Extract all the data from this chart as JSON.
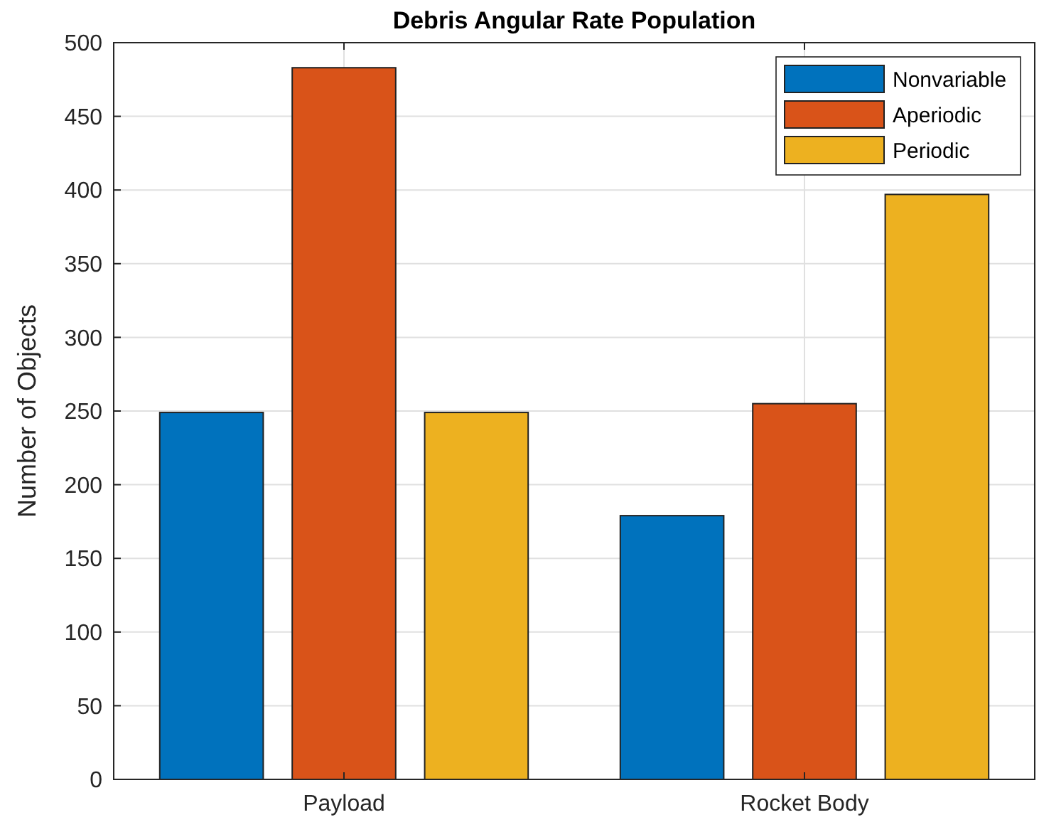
{
  "chart_data": {
    "type": "bar",
    "title": "Debris Angular Rate Population",
    "ylabel": "Number of Objects",
    "categories": [
      "Payload",
      "Rocket Body"
    ],
    "series": [
      {
        "name": "Nonvariable",
        "color": "#0072bd",
        "values": [
          249,
          179
        ]
      },
      {
        "name": "Aperiodic",
        "color": "#d95319",
        "values": [
          483,
          255
        ]
      },
      {
        "name": "Periodic",
        "color": "#edb120",
        "values": [
          249,
          397
        ]
      }
    ],
    "ylim": [
      0,
      500
    ],
    "yticks": [
      0,
      50,
      100,
      150,
      200,
      250,
      300,
      350,
      400,
      450,
      500
    ],
    "grid": true,
    "legend": "top right"
  }
}
